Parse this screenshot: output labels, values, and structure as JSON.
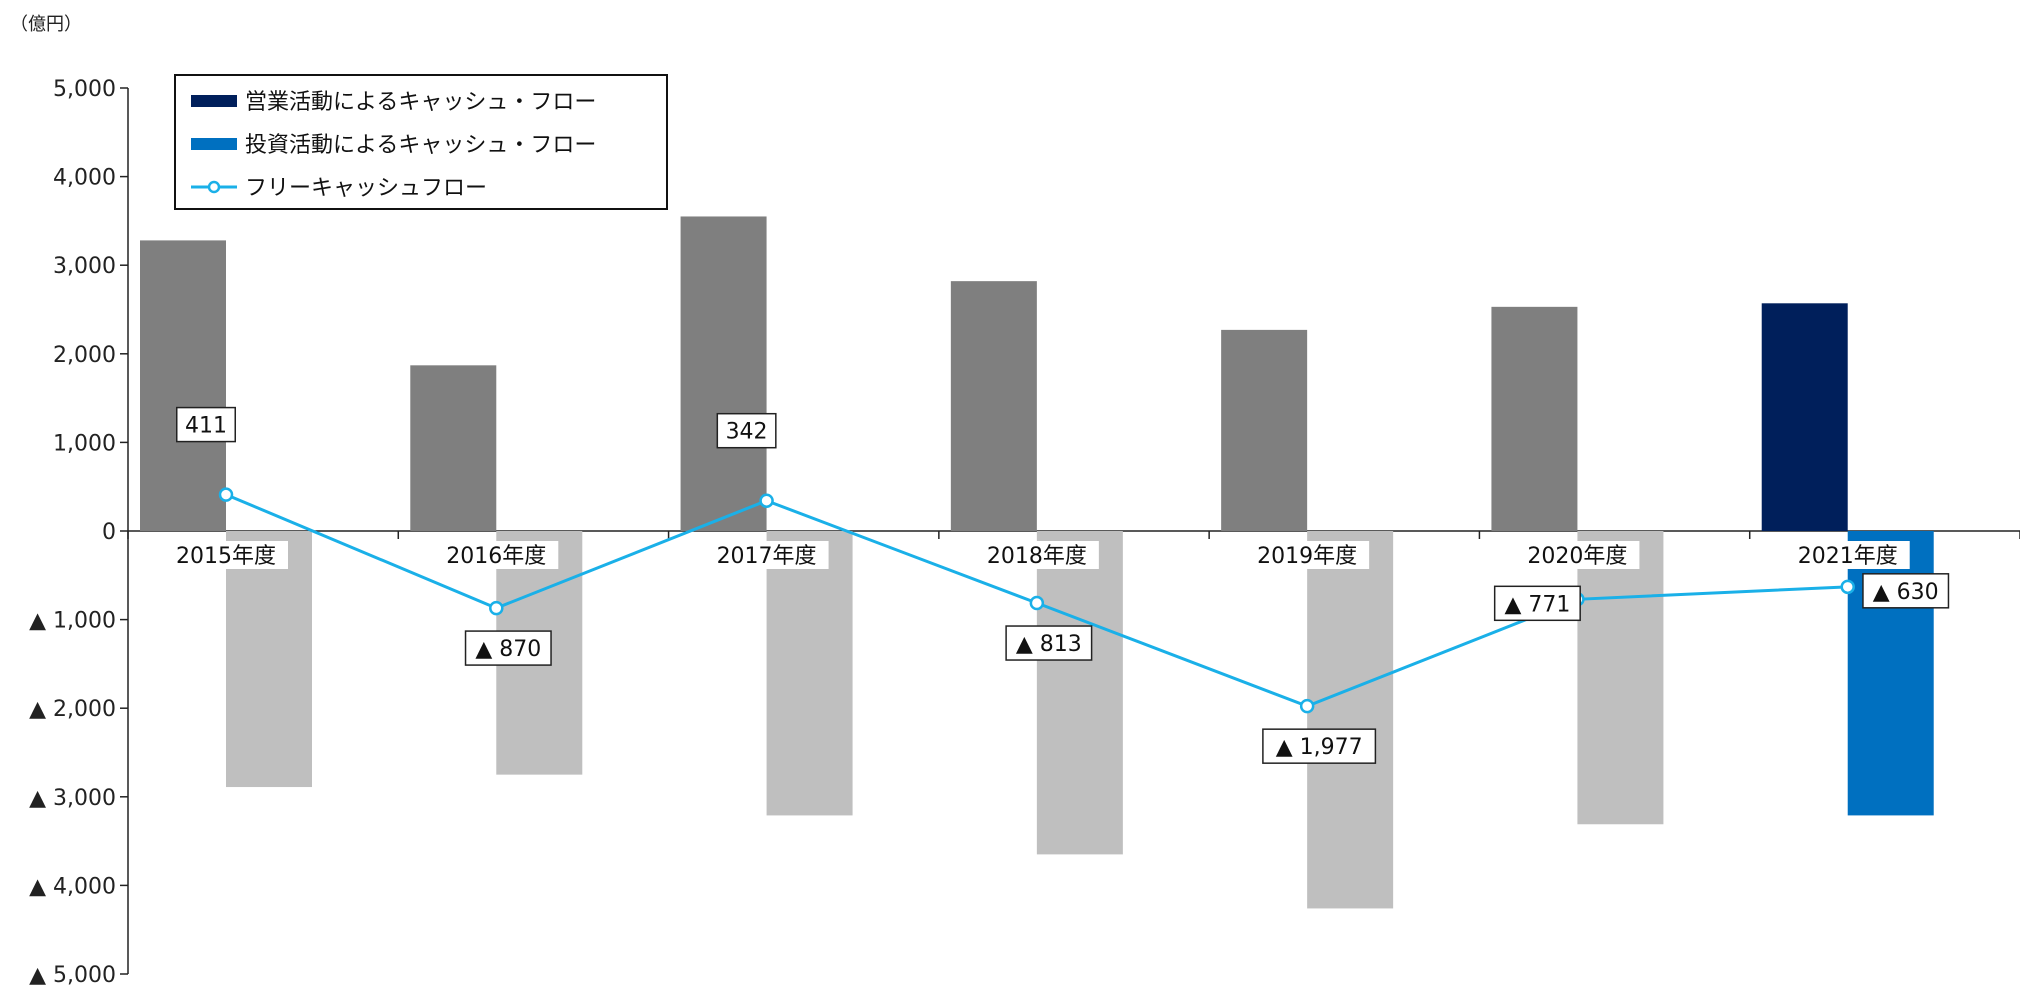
{
  "chart_data": {
    "type": "bar",
    "unit_label": "（億円）",
    "categories": [
      "2015年度",
      "2016年度",
      "2017年度",
      "2018年度",
      "2019年度",
      "2020年度",
      "2021年度"
    ],
    "ylim": [
      -5000,
      5000
    ],
    "yticks": [
      {
        "value": 5000,
        "label": "5,000"
      },
      {
        "value": 4000,
        "label": "4,000"
      },
      {
        "value": 3000,
        "label": "3,000"
      },
      {
        "value": 2000,
        "label": "2,000"
      },
      {
        "value": 1000,
        "label": "1,000"
      },
      {
        "value": 0,
        "label": "0"
      },
      {
        "value": -1000,
        "label": "▲ 1,000"
      },
      {
        "value": -2000,
        "label": "▲ 2,000"
      },
      {
        "value": -3000,
        "label": "▲ 3,000"
      },
      {
        "value": -4000,
        "label": "▲ 4,000"
      },
      {
        "value": -5000,
        "label": "▲ 5,000"
      }
    ],
    "series": [
      {
        "name": "営業活動によるキャッシュ・フロー",
        "type": "bar",
        "values": [
          3280,
          1870,
          3550,
          2820,
          2270,
          2530,
          2570
        ],
        "color": "#7f7f7f",
        "highlight_color": "#001f5b"
      },
      {
        "name": "投資活動によるキャッシュ・フロー",
        "type": "bar",
        "values": [
          -2890,
          -2750,
          -3210,
          -3650,
          -4260,
          -3310,
          -3210
        ],
        "color": "#bfbfbf",
        "highlight_color": "#0070c0"
      },
      {
        "name": "フリーキャッシュフロー",
        "type": "line",
        "values": [
          411,
          -870,
          342,
          -813,
          -1977,
          -771,
          -630
        ],
        "labels": [
          "411",
          "▲ 870",
          "342",
          "▲ 813",
          "▲ 1,977",
          "▲ 771",
          "▲ 630"
        ],
        "color": "#1ab0e8"
      }
    ],
    "highlight_index": 6,
    "legend_position": "top-left",
    "grid": false
  }
}
